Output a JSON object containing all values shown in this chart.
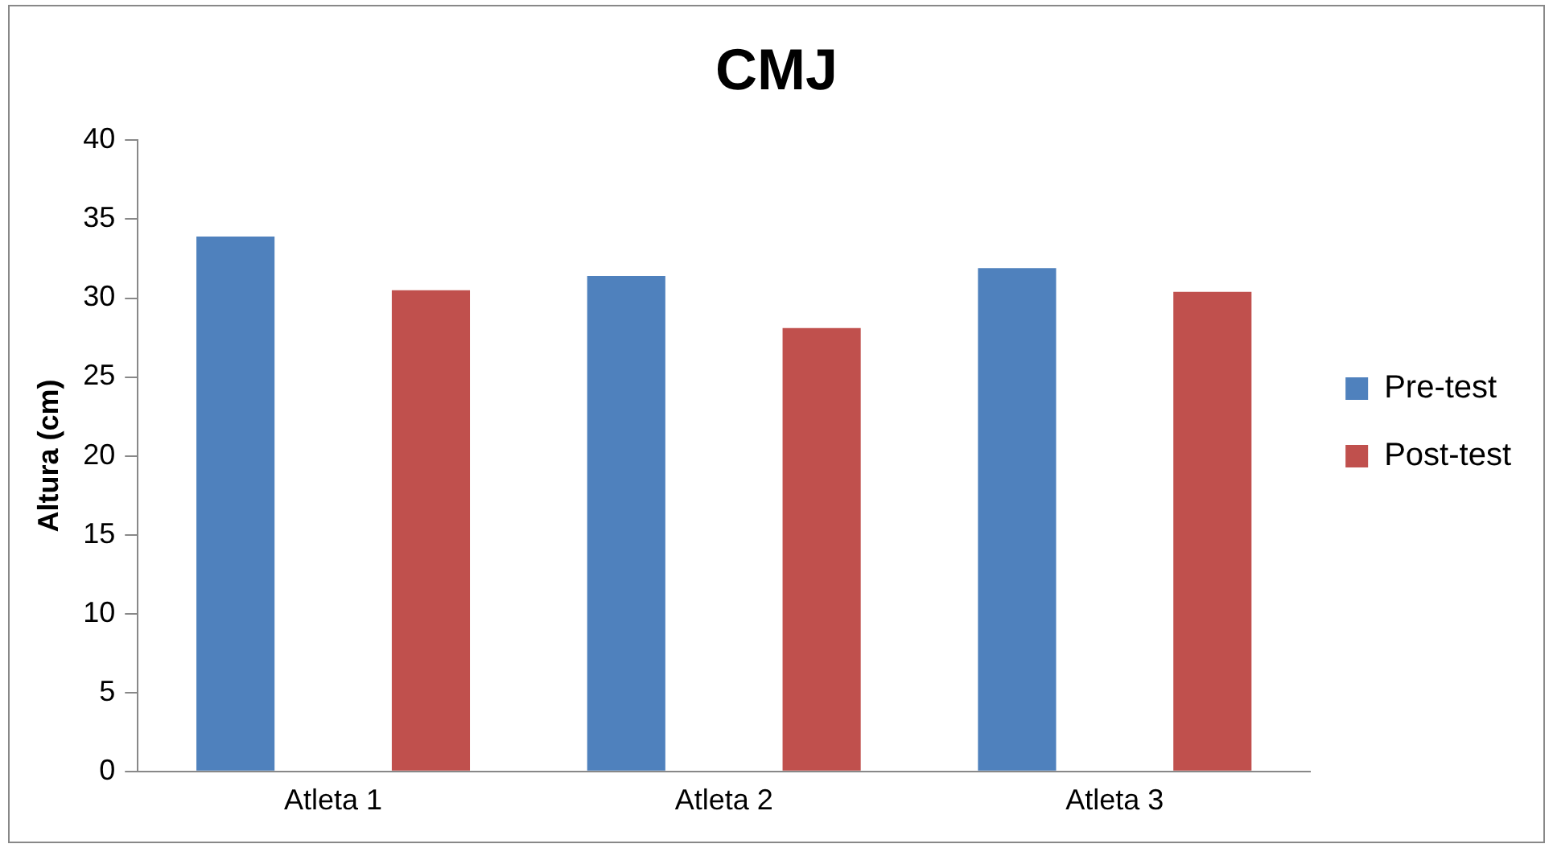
{
  "chart_data": {
    "type": "bar",
    "title": "CMJ",
    "ylabel": "Altura (cm)",
    "categories": [
      "Atleta 1",
      "Atleta 2",
      "Atleta 3"
    ],
    "series": [
      {
        "name": "Pre-test",
        "color": "#4f81bd",
        "values": [
          33.9,
          31.4,
          31.9
        ]
      },
      {
        "name": "Post-test",
        "color": "#c0504d",
        "values": [
          30.5,
          28.1,
          30.4
        ]
      }
    ],
    "ylim": [
      0,
      40
    ],
    "yticks": [
      0,
      5,
      10,
      15,
      20,
      25,
      30,
      35,
      40
    ],
    "grid": false,
    "legend": "right"
  }
}
